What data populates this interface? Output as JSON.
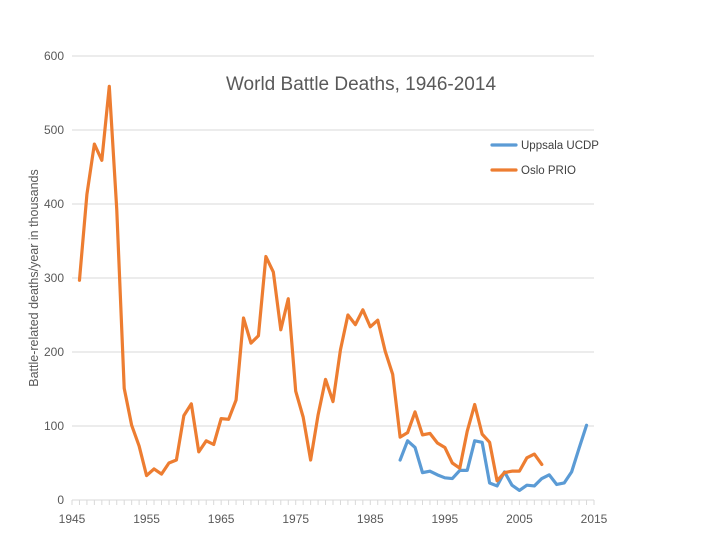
{
  "chart_data": {
    "type": "line",
    "title": "World Battle Deaths, 1946-2014",
    "xlabel": "",
    "ylabel": "Battle-related deaths/year in thousands",
    "xlim": [
      1945,
      2015
    ],
    "ylim": [
      0,
      600
    ],
    "x_ticks": [
      "1945",
      "1955",
      "1965",
      "1975",
      "1985",
      "1995",
      "2005",
      "2015"
    ],
    "y_ticks": [
      "0",
      "100",
      "200",
      "300",
      "400",
      "500",
      "600"
    ],
    "grid": "horizontal",
    "legend_position": "right",
    "series": [
      {
        "name": "Uppsala UCDP",
        "color": "#5B9BD5",
        "x": [
          1989,
          1990,
          1991,
          1992,
          1993,
          1994,
          1995,
          1996,
          1997,
          1998,
          1999,
          2000,
          2001,
          2002,
          2003,
          2004,
          2005,
          2006,
          2007,
          2008,
          2009,
          2010,
          2011,
          2012,
          2013,
          2014
        ],
        "values": [
          54,
          80,
          71,
          37,
          39,
          34,
          30,
          29,
          40,
          40,
          80,
          78,
          23,
          19,
          38,
          20,
          13,
          20,
          19,
          29,
          34,
          21,
          23,
          38,
          70,
          101
        ]
      },
      {
        "name": "Oslo PRIO",
        "color": "#ED7D31",
        "x": [
          1946,
          1947,
          1948,
          1949,
          1950,
          1951,
          1952,
          1953,
          1954,
          1955,
          1956,
          1957,
          1958,
          1959,
          1960,
          1961,
          1962,
          1963,
          1964,
          1965,
          1966,
          1967,
          1968,
          1969,
          1970,
          1971,
          1972,
          1973,
          1974,
          1975,
          1976,
          1977,
          1978,
          1979,
          1980,
          1981,
          1982,
          1983,
          1984,
          1985,
          1986,
          1987,
          1988,
          1989,
          1990,
          1991,
          1992,
          1993,
          1994,
          1995,
          1996,
          1997,
          1998,
          1999,
          2000,
          2001,
          2002,
          2003,
          2004,
          2005,
          2006,
          2007,
          2008
        ],
        "values": [
          297,
          413,
          481,
          459,
          559,
          393,
          151,
          101,
          73,
          33,
          42,
          35,
          50,
          54,
          114,
          130,
          65,
          80,
          75,
          110,
          109,
          135,
          246,
          212,
          222,
          329,
          308,
          230,
          272,
          147,
          112,
          54,
          115,
          163,
          133,
          203,
          250,
          237,
          257,
          234,
          243,
          201,
          170,
          85,
          91,
          119,
          88,
          90,
          77,
          71,
          50,
          43,
          93,
          129,
          89,
          78,
          26,
          37,
          39,
          39,
          57,
          62,
          48
        ]
      }
    ]
  }
}
